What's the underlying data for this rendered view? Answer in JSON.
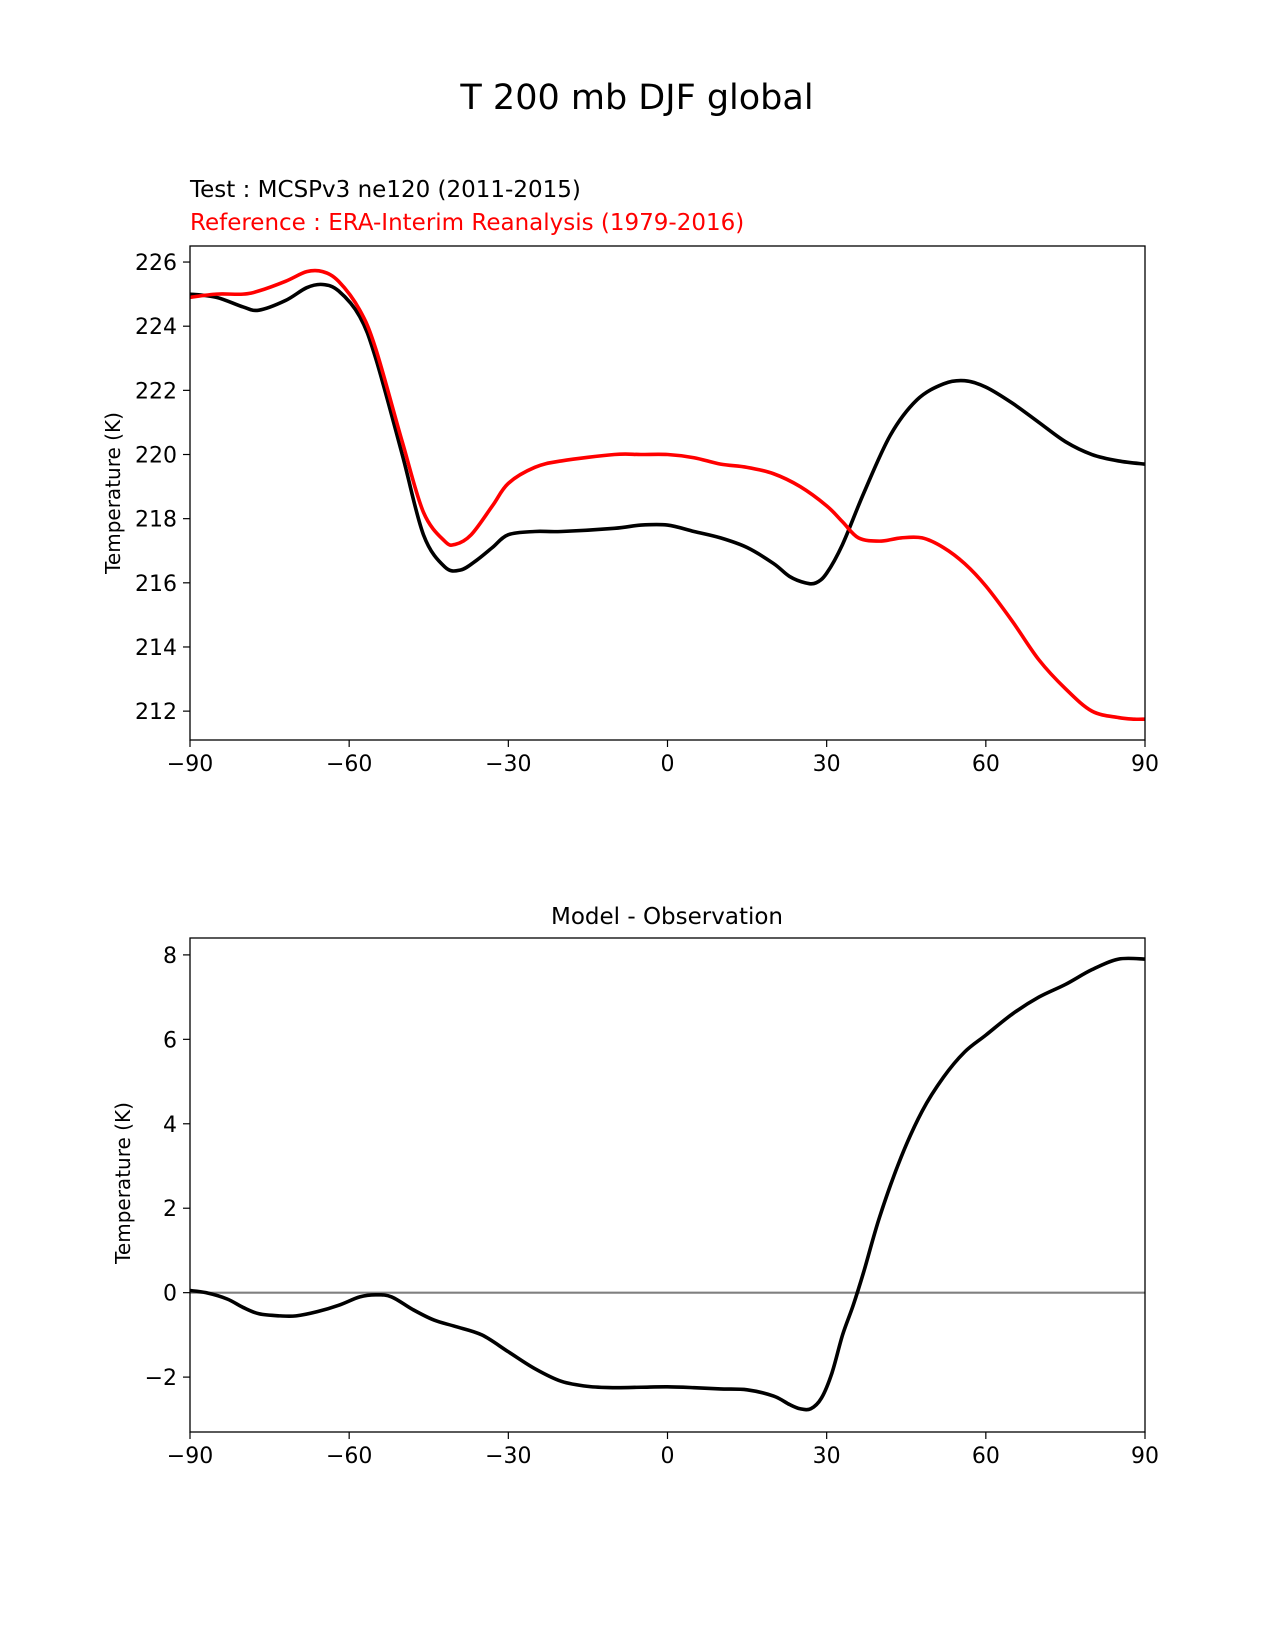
{
  "figure": {
    "title": "T 200 mb DJF global"
  },
  "chart_data": [
    {
      "type": "line",
      "test_label": "Test : MCSPv3 ne120 (2011-2015)",
      "reference_label": "Reference : ERA-Interim Reanalysis (1979-2016)",
      "xlabel": "",
      "ylabel": "Temperature (K)",
      "xlim": [
        -90,
        90
      ],
      "ylim": [
        211.1,
        226.5
      ],
      "xticks": [
        -90,
        -60,
        -30,
        0,
        30,
        60,
        90
      ],
      "xtick_labels": [
        "−90",
        "−60",
        "−30",
        "0",
        "30",
        "60",
        "90"
      ],
      "yticks": [
        212,
        214,
        216,
        218,
        220,
        222,
        224,
        226
      ],
      "yaxis_side": "left",
      "grid": false,
      "series": [
        {
          "color": "#000000",
          "x": [
            -90,
            -85,
            -80,
            -77,
            -72,
            -68,
            -65,
            -62,
            -58,
            -55,
            -50,
            -46,
            -42,
            -39,
            -36,
            -33,
            -30,
            -25,
            -20,
            -10,
            -5,
            0,
            5,
            10,
            15,
            20,
            23,
            26,
            28,
            30,
            33,
            37,
            42,
            47,
            52,
            56,
            60,
            65,
            70,
            75,
            80,
            85,
            90
          ],
          "y": [
            225.0,
            224.9,
            224.6,
            224.5,
            224.8,
            225.2,
            225.3,
            225.1,
            224.3,
            223.0,
            220.0,
            217.5,
            216.5,
            216.4,
            216.7,
            217.1,
            217.5,
            217.6,
            217.6,
            217.7,
            217.8,
            217.8,
            217.6,
            217.4,
            217.1,
            216.6,
            216.2,
            216.0,
            216.0,
            216.3,
            217.2,
            218.8,
            220.6,
            221.7,
            222.2,
            222.3,
            222.1,
            221.6,
            221.0,
            220.4,
            220.0,
            219.8,
            219.7
          ]
        },
        {
          "color": "#ff0000",
          "x": [
            -90,
            -85,
            -80,
            -77,
            -72,
            -68,
            -65,
            -62,
            -58,
            -55,
            -50,
            -46,
            -42,
            -40,
            -37,
            -33,
            -30,
            -25,
            -20,
            -10,
            -5,
            0,
            5,
            10,
            15,
            20,
            25,
            30,
            33,
            36,
            40,
            44,
            48,
            52,
            56,
            60,
            65,
            70,
            75,
            80,
            85,
            88,
            90
          ],
          "y": [
            224.9,
            225.0,
            225.0,
            225.1,
            225.4,
            225.7,
            225.7,
            225.4,
            224.5,
            223.3,
            220.4,
            218.2,
            217.3,
            217.2,
            217.5,
            218.4,
            219.1,
            219.6,
            219.8,
            220.0,
            220.0,
            220.0,
            219.9,
            219.7,
            219.6,
            219.4,
            219.0,
            218.4,
            217.9,
            217.4,
            217.3,
            217.4,
            217.4,
            217.1,
            216.6,
            215.9,
            214.8,
            213.6,
            212.7,
            212.0,
            211.8,
            211.75,
            211.75
          ]
        }
      ]
    },
    {
      "type": "line",
      "title": "Model - Observation",
      "xlabel": "",
      "ylabel": "Temperature (K)",
      "xlim": [
        -90,
        90
      ],
      "ylim": [
        -3.3,
        8.4
      ],
      "xticks": [
        -90,
        -60,
        -30,
        0,
        30,
        60,
        90
      ],
      "xtick_labels": [
        "−90",
        "−60",
        "−30",
        "0",
        "30",
        "60",
        "90"
      ],
      "yticks": [
        -2,
        0,
        2,
        4,
        6,
        8
      ],
      "ytick_labels": [
        "−2",
        "0",
        "2",
        "4",
        "6",
        "8"
      ],
      "grid": false,
      "zero_line": {
        "y": 0,
        "color": "#808080"
      },
      "series": [
        {
          "color": "#000000",
          "x": [
            -90,
            -87,
            -83,
            -80,
            -77,
            -73,
            -70,
            -66,
            -62,
            -58,
            -55,
            -52,
            -48,
            -44,
            -40,
            -35,
            -30,
            -25,
            -20,
            -15,
            -10,
            -5,
            0,
            5,
            10,
            15,
            20,
            23,
            25,
            27,
            29,
            31,
            33,
            35,
            37,
            40,
            44,
            48,
            52,
            56,
            60,
            65,
            70,
            75,
            80,
            85,
            90
          ],
          "y": [
            0.05,
            0.0,
            -0.15,
            -0.35,
            -0.5,
            -0.55,
            -0.55,
            -0.45,
            -0.3,
            -0.1,
            -0.05,
            -0.1,
            -0.4,
            -0.65,
            -0.8,
            -1.0,
            -1.4,
            -1.8,
            -2.1,
            -2.22,
            -2.25,
            -2.24,
            -2.23,
            -2.25,
            -2.28,
            -2.3,
            -2.45,
            -2.65,
            -2.75,
            -2.75,
            -2.5,
            -1.9,
            -1.0,
            -0.3,
            0.5,
            1.8,
            3.2,
            4.3,
            5.1,
            5.7,
            6.1,
            6.6,
            7.0,
            7.3,
            7.65,
            7.9,
            7.9
          ]
        }
      ]
    }
  ]
}
